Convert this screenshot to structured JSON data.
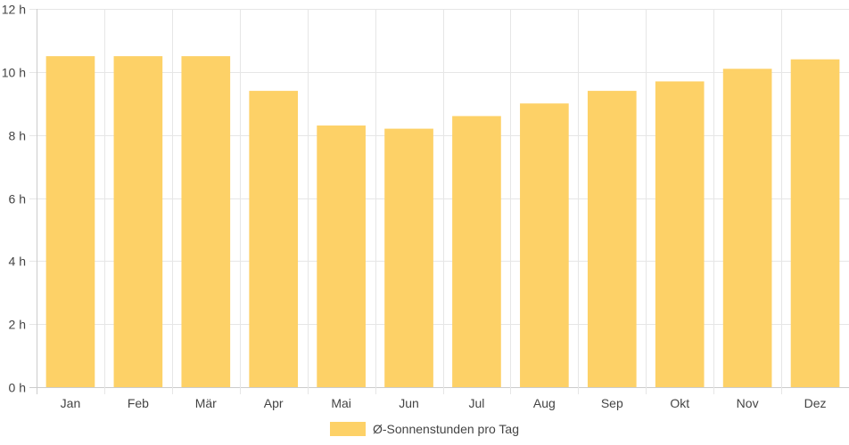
{
  "chart_data": {
    "type": "bar",
    "categories": [
      "Jan",
      "Feb",
      "Mär",
      "Apr",
      "Mai",
      "Jun",
      "Jul",
      "Aug",
      "Sep",
      "Okt",
      "Nov",
      "Dez"
    ],
    "series": [
      {
        "name": "Ø-Sonnenstunden pro Tag",
        "values": [
          10.5,
          10.5,
          10.5,
          9.4,
          8.3,
          8.2,
          8.6,
          9.0,
          9.4,
          9.7,
          10.1,
          10.4
        ]
      }
    ],
    "y_ticks": [
      "0 h",
      "2 h",
      "4 h",
      "6 h",
      "8 h",
      "10 h",
      "12 h"
    ],
    "ylim": [
      0,
      12
    ],
    "grid": true,
    "legend": "bottom-center",
    "colors": {
      "bar": "#fdd167",
      "grid": "#e6e6e6",
      "axis": "#cccccc",
      "text": "#444444"
    }
  }
}
